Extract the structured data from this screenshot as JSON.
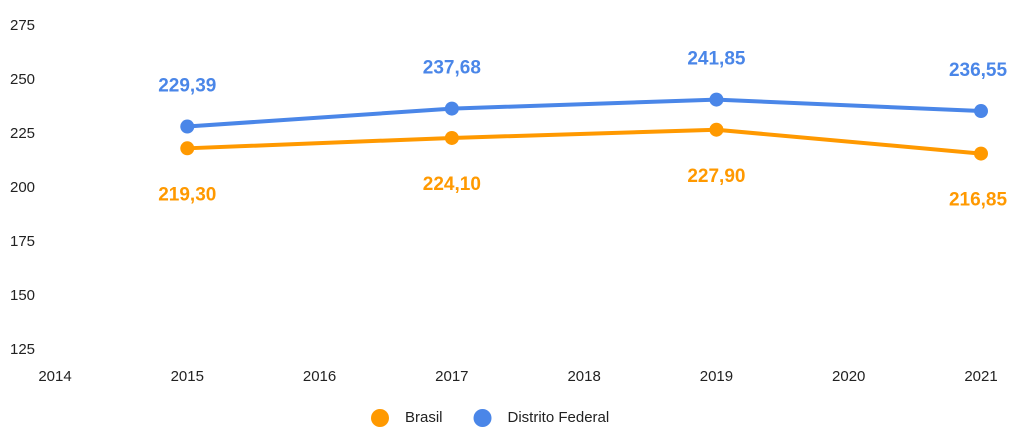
{
  "chart_data": {
    "type": "line",
    "x": [
      2015,
      2017,
      2019,
      2021
    ],
    "series": [
      {
        "name": "Brasil",
        "color": "#ff9900",
        "values": [
          219.3,
          224.1,
          227.9,
          216.85
        ],
        "value_labels": [
          "219,30",
          "224,10",
          "227,90",
          "216,85"
        ]
      },
      {
        "name": "Distrito Federal",
        "color": "#4a86e8",
        "values": [
          229.39,
          237.68,
          241.85,
          236.55
        ],
        "value_labels": [
          "229,39",
          "237,68",
          "241,85",
          "236,55"
        ]
      }
    ],
    "xlim": [
      2014,
      2021
    ],
    "xticks": [
      2014,
      2015,
      2016,
      2017,
      2018,
      2019,
      2020,
      2021
    ],
    "ylim": [
      125,
      275
    ],
    "yticks": [
      125,
      150,
      175,
      200,
      225,
      250,
      275
    ],
    "grid": false,
    "legend": "bottom"
  }
}
